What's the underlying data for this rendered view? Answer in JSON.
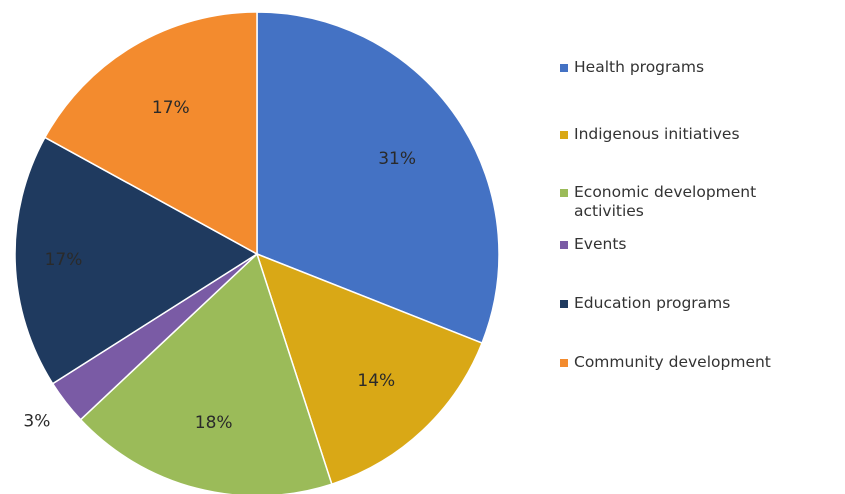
{
  "chart_data": {
    "type": "pie",
    "title": "",
    "slices": [
      {
        "name": "Health programs",
        "value": 31,
        "label": "31%",
        "color": "#4472C4"
      },
      {
        "name": "Indigenous initiatives",
        "value": 14,
        "label": "14%",
        "color": "#D9A816"
      },
      {
        "name": "Economic development activities",
        "value": 18,
        "label": "18%",
        "color": "#9BBB59"
      },
      {
        "name": "Events",
        "value": 3,
        "label": "3%",
        "color": "#7A5BA5"
      },
      {
        "name": "Education programs",
        "value": 17,
        "label": "17%",
        "color": "#1F3A5F"
      },
      {
        "name": "Community development",
        "value": 17,
        "label": "17%",
        "color": "#F38B2E"
      }
    ],
    "legend": {
      "placement": "right",
      "entries": [
        "Health programs",
        "Indigenous initiatives",
        "Economic development activities",
        "Events",
        "Education programs",
        "Community development"
      ]
    }
  }
}
